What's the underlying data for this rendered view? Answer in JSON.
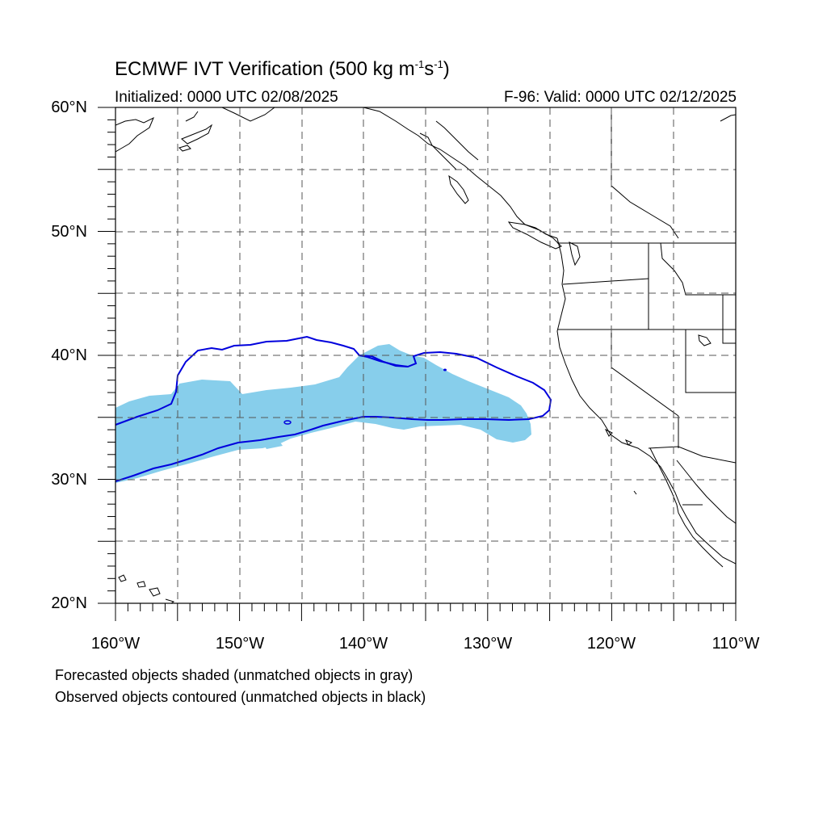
{
  "title": {
    "text": "ECMWF IVT Verification (500 kg m",
    "sup1": "-1",
    "mid": "s",
    "sup2": "-1",
    "end": ")"
  },
  "subtitle": {
    "left": "Initialized: 0000 UTC 02/08/2025",
    "right": "F-96: Valid: 0000 UTC 02/12/2025"
  },
  "axes": {
    "lat_labels": [
      "60°N",
      "50°N",
      "40°N",
      "30°N",
      "20°N"
    ],
    "lon_labels": [
      "160°W",
      "150°W",
      "140°W",
      "130°W",
      "120°W",
      "110°W"
    ],
    "lat_range": [
      20,
      60
    ],
    "lon_range": [
      -160,
      -110
    ],
    "grid": "dashed every 5 degrees"
  },
  "notes": {
    "forecast": "Forecasted objects shaded (unmatched objects in gray)",
    "observed": "Observed objects contoured (unmatched objects in black)"
  },
  "colors": {
    "forecast_fill": "#87ceeb",
    "observed_contour": "#0000dd",
    "coastline": "#000000",
    "grid": "#555555"
  }
}
